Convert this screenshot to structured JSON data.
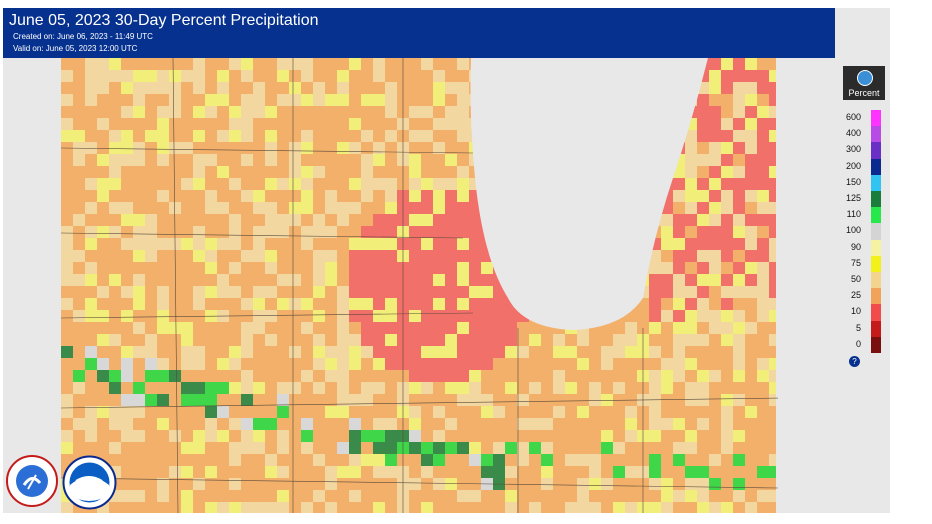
{
  "header": {
    "title": "June 05, 2023 30-Day Percent Precipitation",
    "created": "Created on: June 06, 2023 - 11:49 UTC",
    "valid": "Valid on: June 05, 2023 12:00 UTC"
  },
  "legend": {
    "title": "Percent",
    "items": [
      {
        "label": "600",
        "color": "#ff33ff"
      },
      {
        "label": "400",
        "color": "#b84ae6"
      },
      {
        "label": "300",
        "color": "#6a2fc4"
      },
      {
        "label": "200",
        "color": "#0a2a8f"
      },
      {
        "label": "150",
        "color": "#2fc4f2"
      },
      {
        "label": "125",
        "color": "#1a7d3b"
      },
      {
        "label": "110",
        "color": "#27e84a"
      },
      {
        "label": "100",
        "color": "#d4d4d4"
      },
      {
        "label": "90",
        "color": "#f5f2a3"
      },
      {
        "label": "75",
        "color": "#f2f21a"
      },
      {
        "label": "50",
        "color": "#f2d48f"
      },
      {
        "label": "25",
        "color": "#f2a35a"
      },
      {
        "label": "10",
        "color": "#f24b4b"
      },
      {
        "label": "5",
        "color": "#c41a1a"
      },
      {
        "label": "0",
        "color": "#7a0f0f"
      }
    ],
    "help_icon": "?"
  },
  "logos": {
    "nws": "nws-logo",
    "noaa": "noaa-logo"
  },
  "map_colors": {
    "land_dry": "#f2b06a",
    "land_tan": "#f2d7a0",
    "land_yellow": "#f2ee7a",
    "land_red": "#f2706a",
    "land_green": "#3fd64a",
    "land_darkgreen": "#3a8a4a",
    "land_gray": "#d8d8d8",
    "lake": "#e8e8e8"
  }
}
